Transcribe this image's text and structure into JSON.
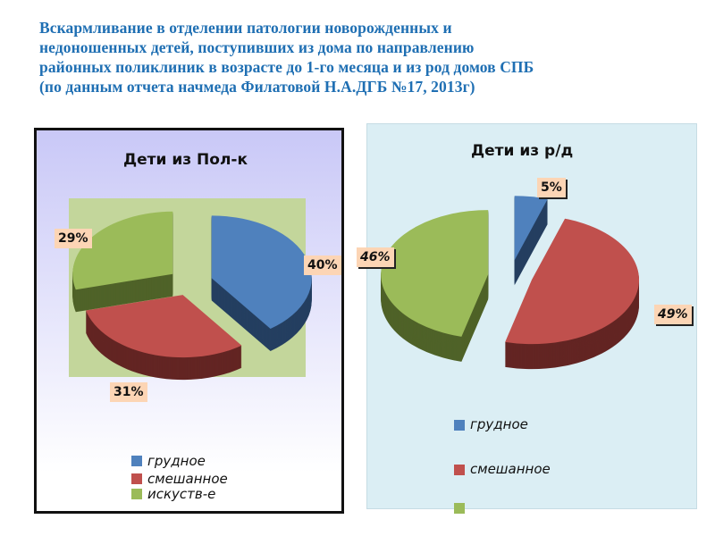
{
  "title": "Вскармливание в отделении патологии новорожденных и\nнедоношенных детей, поступивших из дома по направлению\nрайонных поликлиник в возрасте до 1-го месяца  и из род домов СПБ\n(по данным  отчета начмеда   Филатовой Н.А.ДГБ №17, 2013г)",
  "chart_data": [
    {
      "type": "pie",
      "title": "Дети из Пол-к",
      "categories": [
        "грудное",
        "смешанное",
        "искуств-е"
      ],
      "values": [
        40,
        31,
        29
      ],
      "data_labels": [
        "40%",
        "31%",
        "29%"
      ],
      "colors": [
        "#4f81bd",
        "#c0504d",
        "#9bbb59"
      ],
      "side_colors": [
        "#243f60",
        "#632523",
        "#4f6228"
      ],
      "style": "3d exploded",
      "legend": "bottom",
      "plot_area_color": "#c3d69b"
    },
    {
      "type": "pie",
      "title": "Дети из р/д",
      "categories": [
        "грудное",
        "смешанное",
        ""
      ],
      "values": [
        5,
        49,
        46
      ],
      "data_labels": [
        "5%",
        "49%",
        "46%"
      ],
      "colors": [
        "#4f81bd",
        "#c0504d",
        "#9bbb59"
      ],
      "side_colors": [
        "#243f60",
        "#632523",
        "#4f6228"
      ],
      "style": "3d exploded",
      "legend": "bottom"
    }
  ]
}
